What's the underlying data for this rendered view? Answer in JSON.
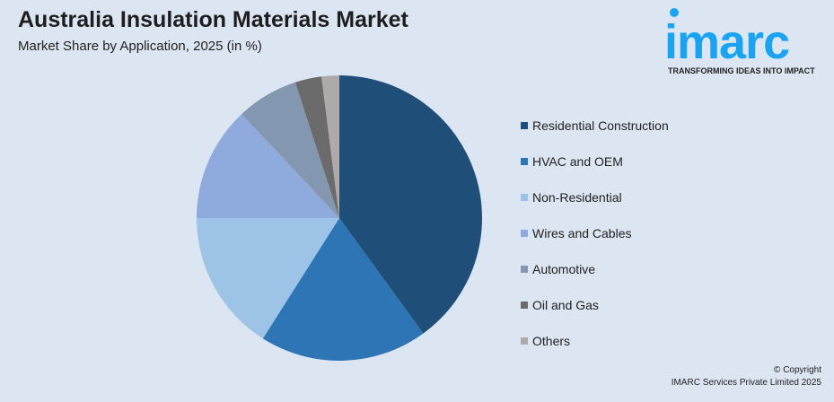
{
  "header": {
    "title": "Australia Insulation Materials Market",
    "subtitle": "Market Share by Application, 2025 (in %)"
  },
  "logo": {
    "text": "imarc",
    "tagline": "TRANSFORMING IDEAS INTO IMPACT",
    "color": "#1aa3f0"
  },
  "footer": {
    "copyright": "© Copyright",
    "company": "IMARC Services Private Limited 2025"
  },
  "chart_data": {
    "type": "pie",
    "title": "Australia Insulation Materials Market",
    "subtitle": "Market Share by Application, 2025 (in %)",
    "legend_position": "right",
    "start_angle": "12 o'clock, clockwise",
    "categories": [
      "Residential Construction",
      "HVAC and OEM",
      "Non-Residential",
      "Wires and Cables",
      "Automotive",
      "Oil and Gas",
      "Others"
    ],
    "values": [
      40,
      19,
      16,
      13,
      7,
      3,
      2
    ],
    "colors": [
      "#1f4e79",
      "#2e75b6",
      "#9dc3e6",
      "#8faadc",
      "#8497b0",
      "#6b6b6b",
      "#aeaaaa"
    ]
  }
}
